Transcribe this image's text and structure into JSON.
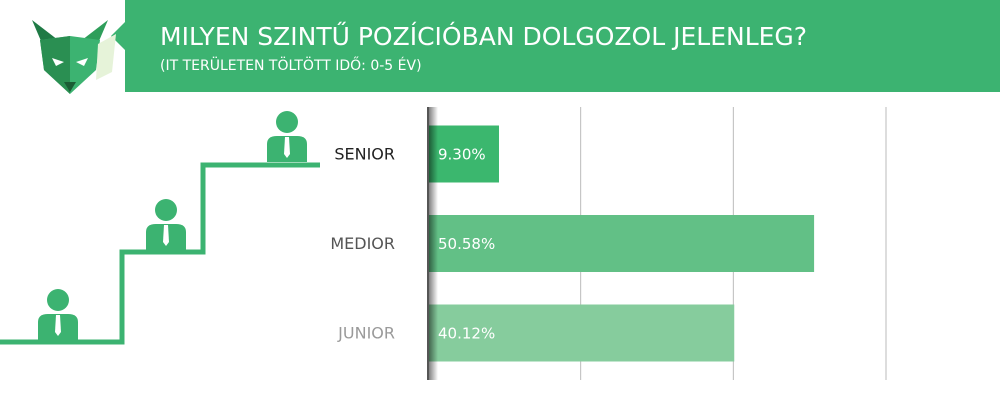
{
  "chart_data": {
    "type": "bar",
    "title": "MILYEN SZINTŰ POZÍCIÓBAN DOLGOZOL JELENLEG?",
    "subtitle": "(IT TERÜLETEN TÖLTÖTT IDŐ: 0-5 ÉV)",
    "categories": [
      "SENIOR",
      "MEDIOR",
      "JUNIOR"
    ],
    "values": [
      9.3,
      50.58,
      40.12
    ],
    "value_labels": [
      "9.30%",
      "50.58%",
      "40.12%"
    ],
    "colors": [
      "#3bb76e",
      "#62c086",
      "#86cc9d"
    ],
    "label_colors": [
      "#222222",
      "#555555",
      "#9a9a9a"
    ],
    "xlim": [
      0,
      60
    ],
    "xticks": [
      0,
      20,
      40,
      60
    ],
    "grid": true
  }
}
